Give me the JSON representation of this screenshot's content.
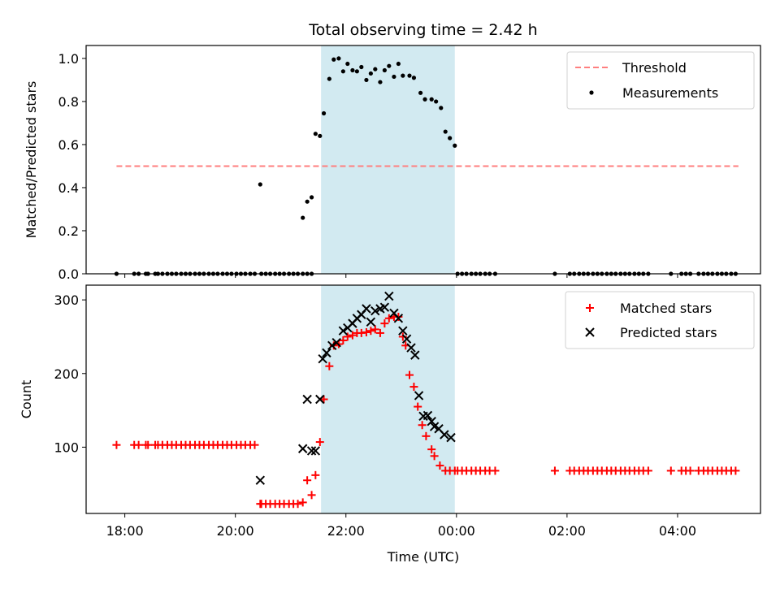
{
  "chart_data": [
    {
      "type": "scatter",
      "title": "Total observing time = 2.42 h",
      "ylabel": "Matched/Predicted stars",
      "xlabel": "",
      "ylim": [
        0,
        1.06
      ],
      "yticks": [
        0.0,
        0.2,
        0.4,
        0.6,
        0.8,
        1.0
      ],
      "ytick_labels": [
        "0.0",
        "0.2",
        "0.4",
        "0.6",
        "0.8",
        "1.0"
      ],
      "legend_position": "top-right",
      "highlight_span": {
        "x0": 21.55,
        "x1": 23.97,
        "color": "#add8e6"
      },
      "threshold": {
        "name": "Threshold",
        "value": 0.5,
        "x0": 17.85,
        "x1": 29.1,
        "color": "#ff7f7f"
      },
      "series": [
        {
          "name": "Measurements",
          "color": "#000000",
          "marker": "dot",
          "points": [
            [
              17.85,
              0
            ],
            [
              18.17,
              0
            ],
            [
              18.25,
              0
            ],
            [
              18.38,
              0
            ],
            [
              18.42,
              0
            ],
            [
              18.55,
              0
            ],
            [
              18.6,
              0
            ],
            [
              18.68,
              0
            ],
            [
              18.77,
              0
            ],
            [
              18.85,
              0
            ],
            [
              18.93,
              0
            ],
            [
              19.02,
              0
            ],
            [
              19.1,
              0
            ],
            [
              19.18,
              0
            ],
            [
              19.27,
              0
            ],
            [
              19.35,
              0
            ],
            [
              19.43,
              0
            ],
            [
              19.52,
              0
            ],
            [
              19.6,
              0
            ],
            [
              19.68,
              0
            ],
            [
              19.77,
              0
            ],
            [
              19.85,
              0
            ],
            [
              19.93,
              0
            ],
            [
              20.02,
              0
            ],
            [
              20.1,
              0
            ],
            [
              20.18,
              0
            ],
            [
              20.27,
              0
            ],
            [
              20.35,
              0
            ],
            [
              20.45,
              0.415
            ],
            [
              20.47,
              0
            ],
            [
              20.55,
              0
            ],
            [
              20.63,
              0
            ],
            [
              20.72,
              0
            ],
            [
              20.8,
              0
            ],
            [
              20.88,
              0
            ],
            [
              20.97,
              0
            ],
            [
              21.05,
              0
            ],
            [
              21.13,
              0
            ],
            [
              21.22,
              0
            ],
            [
              21.3,
              0
            ],
            [
              21.38,
              0
            ],
            [
              21.22,
              0.26
            ],
            [
              21.3,
              0.335
            ],
            [
              21.38,
              0.355
            ],
            [
              21.45,
              0.65
            ],
            [
              21.53,
              0.64
            ],
            [
              21.6,
              0.745
            ],
            [
              21.7,
              0.905
            ],
            [
              21.78,
              0.995
            ],
            [
              21.87,
              1.0
            ],
            [
              21.95,
              0.94
            ],
            [
              22.03,
              0.975
            ],
            [
              22.12,
              0.945
            ],
            [
              22.2,
              0.94
            ],
            [
              22.28,
              0.96
            ],
            [
              22.37,
              0.9
            ],
            [
              22.45,
              0.93
            ],
            [
              22.53,
              0.95
            ],
            [
              22.62,
              0.89
            ],
            [
              22.7,
              0.945
            ],
            [
              22.78,
              0.965
            ],
            [
              22.87,
              0.915
            ],
            [
              22.95,
              0.975
            ],
            [
              23.03,
              0.92
            ],
            [
              23.15,
              0.92
            ],
            [
              23.23,
              0.91
            ],
            [
              23.35,
              0.84
            ],
            [
              23.43,
              0.81
            ],
            [
              23.55,
              0.81
            ],
            [
              23.63,
              0.8
            ],
            [
              23.72,
              0.77
            ],
            [
              23.8,
              0.66
            ],
            [
              23.88,
              0.63
            ],
            [
              23.97,
              0.595
            ],
            [
              24.02,
              0
            ],
            [
              24.1,
              0
            ],
            [
              24.18,
              0
            ],
            [
              24.27,
              0
            ],
            [
              24.35,
              0
            ],
            [
              24.43,
              0
            ],
            [
              24.52,
              0
            ],
            [
              24.6,
              0
            ],
            [
              24.7,
              0
            ],
            [
              25.78,
              0
            ],
            [
              26.05,
              0
            ],
            [
              26.13,
              0
            ],
            [
              26.22,
              0
            ],
            [
              26.3,
              0
            ],
            [
              26.38,
              0
            ],
            [
              26.47,
              0
            ],
            [
              26.55,
              0
            ],
            [
              26.63,
              0
            ],
            [
              26.72,
              0
            ],
            [
              26.8,
              0
            ],
            [
              26.88,
              0
            ],
            [
              26.97,
              0
            ],
            [
              27.05,
              0
            ],
            [
              27.13,
              0
            ],
            [
              27.22,
              0
            ],
            [
              27.3,
              0
            ],
            [
              27.38,
              0
            ],
            [
              27.47,
              0
            ],
            [
              27.88,
              0
            ],
            [
              28.07,
              0
            ],
            [
              28.15,
              0
            ],
            [
              28.23,
              0
            ],
            [
              28.38,
              0
            ],
            [
              28.47,
              0
            ],
            [
              28.55,
              0
            ],
            [
              28.63,
              0
            ],
            [
              28.72,
              0
            ],
            [
              28.8,
              0
            ],
            [
              28.88,
              0
            ],
            [
              28.97,
              0
            ],
            [
              29.05,
              0
            ]
          ]
        }
      ]
    },
    {
      "type": "scatter",
      "title": "",
      "ylabel": "Count",
      "xlabel": "Time (UTC)",
      "ylim": [
        10,
        320
      ],
      "yticks": [
        100,
        200,
        300
      ],
      "ytick_labels": [
        "100",
        "200",
        "300"
      ],
      "xlim": [
        17.3,
        29.5
      ],
      "xticks": [
        18,
        20,
        22,
        24,
        26,
        28
      ],
      "xtick_labels": [
        "18:00",
        "20:00",
        "22:00",
        "00:00",
        "02:00",
        "04:00"
      ],
      "legend_position": "top-right",
      "highlight_span": {
        "x0": 21.55,
        "x1": 23.97,
        "color": "#add8e6"
      },
      "series": [
        {
          "name": "Matched stars",
          "color": "#ff0000",
          "marker": "plus",
          "points": [
            [
              17.85,
              103
            ],
            [
              18.17,
              103
            ],
            [
              18.25,
              103
            ],
            [
              18.38,
              103
            ],
            [
              18.42,
              103
            ],
            [
              18.55,
              103
            ],
            [
              18.6,
              103
            ],
            [
              18.68,
              103
            ],
            [
              18.77,
              103
            ],
            [
              18.85,
              103
            ],
            [
              18.93,
              103
            ],
            [
              19.02,
              103
            ],
            [
              19.1,
              103
            ],
            [
              19.18,
              103
            ],
            [
              19.27,
              103
            ],
            [
              19.35,
              103
            ],
            [
              19.43,
              103
            ],
            [
              19.52,
              103
            ],
            [
              19.6,
              103
            ],
            [
              19.68,
              103
            ],
            [
              19.77,
              103
            ],
            [
              19.85,
              103
            ],
            [
              19.93,
              103
            ],
            [
              20.02,
              103
            ],
            [
              20.1,
              103
            ],
            [
              20.18,
              103
            ],
            [
              20.27,
              103
            ],
            [
              20.35,
              103
            ],
            [
              20.45,
              23
            ],
            [
              20.47,
              23
            ],
            [
              20.55,
              23
            ],
            [
              20.63,
              23
            ],
            [
              20.72,
              23
            ],
            [
              20.8,
              23
            ],
            [
              20.88,
              23
            ],
            [
              20.97,
              23
            ],
            [
              21.05,
              23
            ],
            [
              21.13,
              23
            ],
            [
              21.22,
              25
            ],
            [
              21.3,
              55
            ],
            [
              21.38,
              35
            ],
            [
              21.45,
              62
            ],
            [
              21.53,
              107
            ],
            [
              21.6,
              165
            ],
            [
              21.7,
              210
            ],
            [
              21.78,
              238
            ],
            [
              21.87,
              240
            ],
            [
              21.95,
              245
            ],
            [
              22.03,
              250
            ],
            [
              22.12,
              252
            ],
            [
              22.2,
              255
            ],
            [
              22.28,
              255
            ],
            [
              22.37,
              256
            ],
            [
              22.45,
              258
            ],
            [
              22.53,
              260
            ],
            [
              22.62,
              255
            ],
            [
              22.7,
              268
            ],
            [
              22.78,
              275
            ],
            [
              22.87,
              277
            ],
            [
              22.95,
              277
            ],
            [
              23.03,
              250
            ],
            [
              23.08,
              238
            ],
            [
              23.15,
              198
            ],
            [
              23.23,
              182
            ],
            [
              23.3,
              155
            ],
            [
              23.38,
              130
            ],
            [
              23.45,
              115
            ],
            [
              23.55,
              97
            ],
            [
              23.6,
              88
            ],
            [
              23.7,
              75
            ],
            [
              23.8,
              68
            ],
            [
              23.88,
              68
            ],
            [
              23.97,
              68
            ],
            [
              24.02,
              68
            ],
            [
              24.1,
              68
            ],
            [
              24.18,
              68
            ],
            [
              24.27,
              68
            ],
            [
              24.35,
              68
            ],
            [
              24.43,
              68
            ],
            [
              24.52,
              68
            ],
            [
              24.6,
              68
            ],
            [
              24.7,
              68
            ],
            [
              25.78,
              68
            ],
            [
              26.05,
              68
            ],
            [
              26.13,
              68
            ],
            [
              26.22,
              68
            ],
            [
              26.3,
              68
            ],
            [
              26.38,
              68
            ],
            [
              26.47,
              68
            ],
            [
              26.55,
              68
            ],
            [
              26.63,
              68
            ],
            [
              26.72,
              68
            ],
            [
              26.8,
              68
            ],
            [
              26.88,
              68
            ],
            [
              26.97,
              68
            ],
            [
              27.05,
              68
            ],
            [
              27.13,
              68
            ],
            [
              27.22,
              68
            ],
            [
              27.3,
              68
            ],
            [
              27.38,
              68
            ],
            [
              27.47,
              68
            ],
            [
              27.88,
              68
            ],
            [
              28.07,
              68
            ],
            [
              28.15,
              68
            ],
            [
              28.23,
              68
            ],
            [
              28.38,
              68
            ],
            [
              28.47,
              68
            ],
            [
              28.55,
              68
            ],
            [
              28.63,
              68
            ],
            [
              28.72,
              68
            ],
            [
              28.8,
              68
            ],
            [
              28.88,
              68
            ],
            [
              28.97,
              68
            ],
            [
              29.05,
              68
            ]
          ]
        },
        {
          "name": "Predicted stars",
          "color": "#000000",
          "marker": "x",
          "points": [
            [
              20.45,
              55
            ],
            [
              21.22,
              98
            ],
            [
              21.3,
              165
            ],
            [
              21.38,
              95
            ],
            [
              21.45,
              95
            ],
            [
              21.53,
              165
            ],
            [
              21.58,
              220
            ],
            [
              21.65,
              228
            ],
            [
              21.75,
              238
            ],
            [
              21.83,
              242
            ],
            [
              21.95,
              258
            ],
            [
              22.03,
              262
            ],
            [
              22.12,
              268
            ],
            [
              22.2,
              275
            ],
            [
              22.28,
              280
            ],
            [
              22.37,
              288
            ],
            [
              22.45,
              270
            ],
            [
              22.53,
              285
            ],
            [
              22.62,
              288
            ],
            [
              22.7,
              290
            ],
            [
              22.78,
              305
            ],
            [
              22.87,
              282
            ],
            [
              22.95,
              275
            ],
            [
              23.03,
              258
            ],
            [
              23.1,
              247
            ],
            [
              23.18,
              235
            ],
            [
              23.25,
              225
            ],
            [
              23.32,
              170
            ],
            [
              23.4,
              142
            ],
            [
              23.48,
              143
            ],
            [
              23.55,
              135
            ],
            [
              23.6,
              128
            ],
            [
              23.68,
              125
            ],
            [
              23.78,
              117
            ],
            [
              23.9,
              113
            ]
          ]
        }
      ]
    }
  ]
}
